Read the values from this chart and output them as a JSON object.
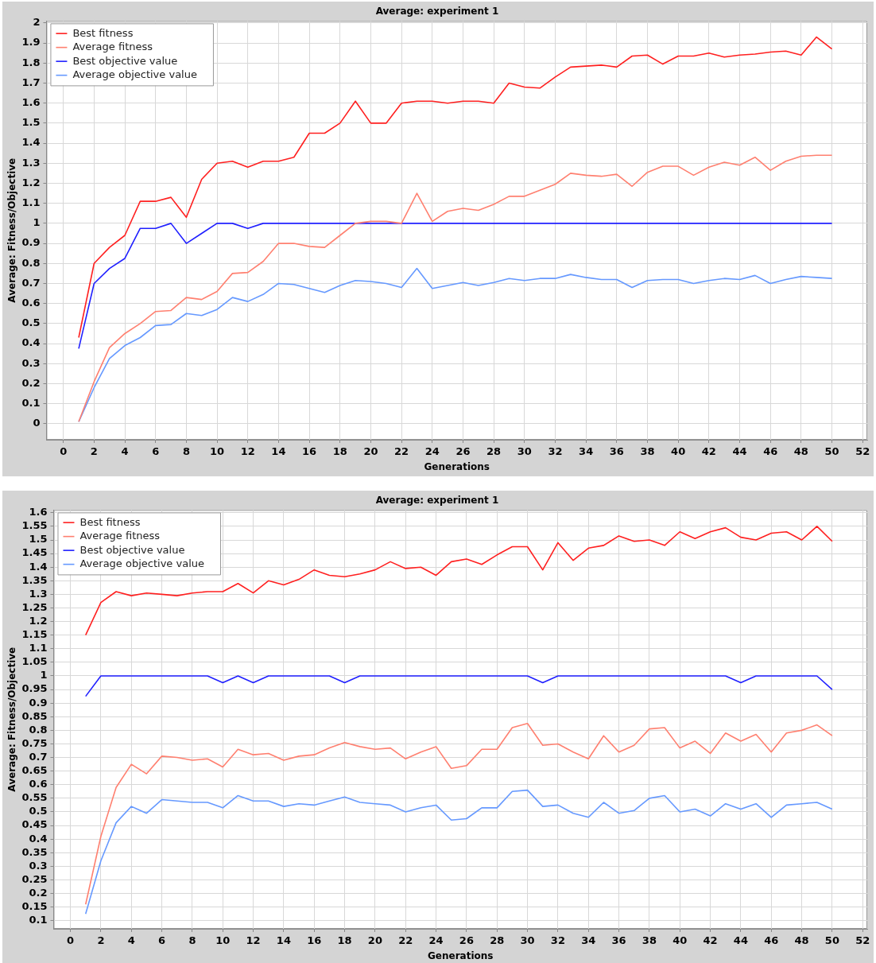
{
  "chart_data": [
    {
      "type": "line",
      "title": "Average: experiment 1",
      "xlabel": "Generations",
      "ylabel": "Average: Fitness/Objective",
      "legend": "top left",
      "grid": true,
      "marker": "none",
      "line_style": "solid",
      "x": [
        1,
        2,
        3,
        4,
        5,
        6,
        7,
        8,
        9,
        10,
        11,
        12,
        13,
        14,
        15,
        16,
        17,
        18,
        19,
        20,
        21,
        22,
        23,
        24,
        25,
        26,
        27,
        28,
        29,
        30,
        31,
        32,
        33,
        34,
        35,
        36,
        37,
        38,
        39,
        40,
        41,
        42,
        43,
        44,
        45,
        46,
        47,
        48,
        49,
        50
      ],
      "xlim": [
        -1.1,
        52.3
      ],
      "xticks": [
        0,
        2,
        4,
        6,
        8,
        10,
        12,
        14,
        16,
        18,
        20,
        22,
        24,
        26,
        28,
        30,
        32,
        34,
        36,
        38,
        40,
        42,
        44,
        46,
        48,
        50,
        52
      ],
      "ylim": [
        -0.08,
        2.01
      ],
      "yticks": [
        0,
        0.1,
        0.2,
        0.3,
        0.4,
        0.5,
        0.6,
        0.7,
        0.8,
        0.9,
        1,
        1.1,
        1.2,
        1.3,
        1.4,
        1.5,
        1.6,
        1.7,
        1.8,
        1.9,
        2
      ],
      "series": [
        {
          "name": "Best fitness",
          "color": "#ff2020",
          "values": [
            0.43,
            0.8,
            0.88,
            0.94,
            1.11,
            1.11,
            1.13,
            1.03,
            1.22,
            1.3,
            1.31,
            1.28,
            1.31,
            1.31,
            1.33,
            1.45,
            1.45,
            1.5,
            1.61,
            1.5,
            1.5,
            1.6,
            1.61,
            1.61,
            1.6,
            1.61,
            1.61,
            1.6,
            1.7,
            1.68,
            1.675,
            1.73,
            1.78,
            1.785,
            1.79,
            1.78,
            1.835,
            1.84,
            1.795,
            1.835,
            1.835,
            1.85,
            1.83,
            1.84,
            1.845,
            1.855,
            1.86,
            1.84,
            1.93,
            1.87
          ]
        },
        {
          "name": "Average fitness",
          "color": "#ff8070",
          "values": [
            0.01,
            0.21,
            0.38,
            0.45,
            0.5,
            0.56,
            0.565,
            0.63,
            0.62,
            0.66,
            0.75,
            0.755,
            0.81,
            0.9,
            0.9,
            0.885,
            0.88,
            0.94,
            1.0,
            1.01,
            1.01,
            1.0,
            1.15,
            1.01,
            1.06,
            1.075,
            1.065,
            1.095,
            1.135,
            1.135,
            1.165,
            1.195,
            1.25,
            1.24,
            1.235,
            1.245,
            1.185,
            1.255,
            1.285,
            1.285,
            1.24,
            1.28,
            1.305,
            1.29,
            1.33,
            1.265,
            1.31,
            1.335,
            1.34,
            1.34
          ]
        },
        {
          "name": "Best objective value",
          "color": "#2020ff",
          "values": [
            0.375,
            0.7,
            0.775,
            0.825,
            0.975,
            0.975,
            1,
            0.9,
            0.95,
            1,
            1,
            0.975,
            1,
            1,
            1,
            1,
            1,
            1,
            1,
            1,
            1,
            1,
            1,
            1,
            1,
            1,
            1,
            1,
            1,
            1,
            1,
            1,
            1,
            1,
            1,
            1,
            1,
            1,
            1,
            1,
            1,
            1,
            1,
            1,
            1,
            1,
            1,
            1,
            1,
            1
          ]
        },
        {
          "name": "Average objective value",
          "color": "#6699ff",
          "values": [
            0.01,
            0.18,
            0.325,
            0.39,
            0.43,
            0.49,
            0.495,
            0.55,
            0.54,
            0.57,
            0.63,
            0.61,
            0.645,
            0.7,
            0.695,
            0.675,
            0.655,
            0.69,
            0.715,
            0.71,
            0.7,
            0.68,
            0.775,
            0.675,
            0.69,
            0.705,
            0.69,
            0.705,
            0.725,
            0.715,
            0.725,
            0.725,
            0.745,
            0.73,
            0.72,
            0.72,
            0.68,
            0.715,
            0.72,
            0.72,
            0.7,
            0.715,
            0.725,
            0.72,
            0.74,
            0.7,
            0.72,
            0.735,
            0.73,
            0.725
          ]
        }
      ]
    },
    {
      "type": "line",
      "title": "Average: experiment 1",
      "xlabel": "Generations",
      "ylabel": "Average: Fitness/Objective",
      "legend": "top left",
      "grid": true,
      "marker": "none",
      "line_style": "solid",
      "x": [
        1,
        2,
        3,
        4,
        5,
        6,
        7,
        8,
        9,
        10,
        11,
        12,
        13,
        14,
        15,
        16,
        17,
        18,
        19,
        20,
        21,
        22,
        23,
        24,
        25,
        26,
        27,
        28,
        29,
        30,
        31,
        32,
        33,
        34,
        35,
        36,
        37,
        38,
        39,
        40,
        41,
        42,
        43,
        44,
        45,
        46,
        47,
        48,
        49,
        50
      ],
      "xlim": [
        -1.1,
        52.3
      ],
      "xticks": [
        0,
        2,
        4,
        6,
        8,
        10,
        12,
        14,
        16,
        18,
        20,
        22,
        24,
        26,
        28,
        30,
        32,
        34,
        36,
        38,
        40,
        42,
        44,
        46,
        48,
        50,
        52
      ],
      "ylim": [
        0.07,
        1.61
      ],
      "yticks": [
        0.1,
        0.15,
        0.2,
        0.25,
        0.3,
        0.35,
        0.4,
        0.45,
        0.5,
        0.55,
        0.6,
        0.65,
        0.7,
        0.75,
        0.8,
        0.85,
        0.9,
        0.95,
        1,
        1.05,
        1.1,
        1.15,
        1.2,
        1.25,
        1.3,
        1.35,
        1.4,
        1.45,
        1.5,
        1.55,
        1.6
      ],
      "series": [
        {
          "name": "Best fitness",
          "color": "#ff2020",
          "values": [
            1.15,
            1.27,
            1.31,
            1.295,
            1.305,
            1.3,
            1.295,
            1.305,
            1.31,
            1.31,
            1.34,
            1.305,
            1.35,
            1.335,
            1.355,
            1.39,
            1.37,
            1.365,
            1.375,
            1.39,
            1.42,
            1.395,
            1.4,
            1.37,
            1.42,
            1.43,
            1.41,
            1.445,
            1.475,
            1.475,
            1.39,
            1.49,
            1.425,
            1.47,
            1.48,
            1.515,
            1.495,
            1.5,
            1.48,
            1.53,
            1.505,
            1.53,
            1.545,
            1.51,
            1.5,
            1.525,
            1.53,
            1.5,
            1.55,
            1.495
          ]
        },
        {
          "name": "Average fitness",
          "color": "#ff8070",
          "values": [
            0.16,
            0.41,
            0.59,
            0.675,
            0.64,
            0.705,
            0.7,
            0.69,
            0.695,
            0.665,
            0.73,
            0.71,
            0.715,
            0.69,
            0.705,
            0.71,
            0.735,
            0.755,
            0.74,
            0.73,
            0.735,
            0.695,
            0.72,
            0.74,
            0.66,
            0.67,
            0.73,
            0.73,
            0.81,
            0.825,
            0.745,
            0.75,
            0.72,
            0.695,
            0.78,
            0.72,
            0.745,
            0.805,
            0.81,
            0.735,
            0.76,
            0.715,
            0.79,
            0.76,
            0.785,
            0.72,
            0.79,
            0.8,
            0.82,
            0.78
          ]
        },
        {
          "name": "Best objective value",
          "color": "#2020ff",
          "values": [
            0.925,
            1,
            1,
            1,
            1,
            1,
            1,
            1,
            1,
            0.975,
            1,
            0.975,
            1,
            1,
            1,
            1,
            1,
            0.975,
            1,
            1,
            1,
            1,
            1,
            1,
            1,
            1,
            1,
            1,
            1,
            1,
            0.975,
            1,
            1,
            1,
            1,
            1,
            1,
            1,
            1,
            1,
            1,
            1,
            1,
            0.975,
            1,
            1,
            1,
            1,
            1,
            0.95
          ]
        },
        {
          "name": "Average objective value",
          "color": "#6699ff",
          "values": [
            0.125,
            0.32,
            0.46,
            0.52,
            0.495,
            0.545,
            0.54,
            0.535,
            0.535,
            0.515,
            0.56,
            0.54,
            0.54,
            0.52,
            0.53,
            0.525,
            0.54,
            0.555,
            0.535,
            0.53,
            0.525,
            0.5,
            0.515,
            0.525,
            0.47,
            0.475,
            0.515,
            0.515,
            0.575,
            0.58,
            0.52,
            0.525,
            0.495,
            0.48,
            0.535,
            0.495,
            0.505,
            0.55,
            0.56,
            0.5,
            0.51,
            0.485,
            0.53,
            0.51,
            0.53,
            0.48,
            0.525,
            0.53,
            0.535,
            0.51
          ]
        }
      ]
    }
  ]
}
